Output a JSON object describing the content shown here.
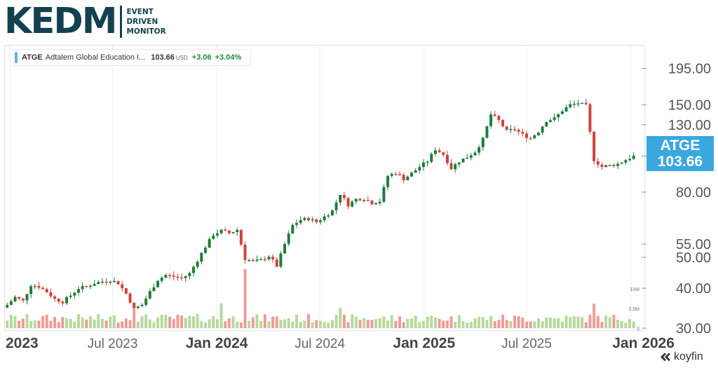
{
  "brand": {
    "logo_word": "KEDM",
    "tagline": [
      "EVENT",
      "DRIVEN",
      "MONITOR"
    ]
  },
  "legend": {
    "symbol": "ATGE",
    "name": "Adtalem Global Education I...",
    "price": "103.66",
    "currency": "USD",
    "change": "+3.06",
    "change_pct": "+3.04%"
  },
  "price_badge": {
    "symbol": "ATGE",
    "price": "103.66"
  },
  "footer": {
    "brand": "koyfin",
    "icon": "koyfin-logo-icon"
  },
  "colors": {
    "up": "#1e7c3a",
    "down": "#d0413b",
    "volume_up": "#b5d99b",
    "volume_down": "#ef9b98",
    "badge": "#3aa7de",
    "accent": "#5ab6df"
  },
  "chart_data": {
    "type": "candlestick",
    "y_scale": "log",
    "y_ticks": [
      "195.00",
      "150.00",
      "130.00",
      "80.00",
      "55.00",
      "50.00",
      "40.00",
      "30.00"
    ],
    "y_tick_values": [
      195,
      150,
      130,
      80,
      55,
      50,
      40,
      30
    ],
    "ylim": [
      30,
      230
    ],
    "x_labels": [
      "2023",
      "Jul 2023",
      "Jan 2024",
      "Jul 2024",
      "Jan 2025",
      "Jul 2025",
      "Jan 2026"
    ],
    "x_label_dates": [
      "2023-01-01",
      "2023-07-01",
      "2024-01-01",
      "2024-07-01",
      "2025-01-01",
      "2025-07-01",
      "2026-01-01"
    ],
    "x_range": [
      "2022-12-23",
      "2026-01-20"
    ],
    "volume_ticks": [
      "10M",
      "5.0M",
      "0"
    ],
    "volume_tick_values": [
      10000000,
      5000000,
      0
    ],
    "volume_max": 16000000,
    "last_price": 103.66,
    "grid": true,
    "close_series": [
      [
        "2022-12-27",
        35.5
      ],
      [
        "2023-01-10",
        37.5
      ],
      [
        "2023-01-24",
        36.5
      ],
      [
        "2023-02-07",
        41.0
      ],
      [
        "2023-02-21",
        40.5
      ],
      [
        "2023-03-07",
        39.0
      ],
      [
        "2023-03-21",
        37.0
      ],
      [
        "2023-04-04",
        36.3
      ],
      [
        "2023-04-18",
        38.0
      ],
      [
        "2023-05-02",
        40.0
      ],
      [
        "2023-05-16",
        40.5
      ],
      [
        "2023-05-30",
        41.5
      ],
      [
        "2023-06-13",
        42.0
      ],
      [
        "2023-06-27",
        42.5
      ],
      [
        "2023-07-11",
        41.5
      ],
      [
        "2023-07-25",
        38.5
      ],
      [
        "2023-08-08",
        34.5
      ],
      [
        "2023-08-22",
        35.5
      ],
      [
        "2023-09-05",
        39.0
      ],
      [
        "2023-09-19",
        42.5
      ],
      [
        "2023-10-03",
        44.0
      ],
      [
        "2023-10-17",
        43.5
      ],
      [
        "2023-10-31",
        43.0
      ],
      [
        "2023-11-14",
        44.5
      ],
      [
        "2023-11-28",
        49.0
      ],
      [
        "2023-12-12",
        54.0
      ],
      [
        "2023-12-26",
        59.0
      ],
      [
        "2024-01-09",
        60.5
      ],
      [
        "2024-01-23",
        59.5
      ],
      [
        "2024-02-06",
        61.0
      ],
      [
        "2024-02-20",
        49.5
      ],
      [
        "2024-03-05",
        48.5
      ],
      [
        "2024-03-19",
        49.0
      ],
      [
        "2024-04-02",
        50.5
      ],
      [
        "2024-04-16",
        47.0
      ],
      [
        "2024-04-30",
        55.0
      ],
      [
        "2024-05-14",
        63.0
      ],
      [
        "2024-05-28",
        65.5
      ],
      [
        "2024-06-11",
        66.0
      ],
      [
        "2024-06-25",
        64.5
      ],
      [
        "2024-07-09",
        67.0
      ],
      [
        "2024-07-23",
        70.0
      ],
      [
        "2024-08-06",
        79.0
      ],
      [
        "2024-08-20",
        73.0
      ],
      [
        "2024-09-03",
        76.0
      ],
      [
        "2024-09-17",
        76.5
      ],
      [
        "2024-10-01",
        74.0
      ],
      [
        "2024-10-15",
        75.0
      ],
      [
        "2024-10-29",
        90.0
      ],
      [
        "2024-11-12",
        92.0
      ],
      [
        "2024-11-26",
        88.0
      ],
      [
        "2024-12-10",
        91.5
      ],
      [
        "2024-12-24",
        96.0
      ],
      [
        "2025-01-07",
        100.0
      ],
      [
        "2025-01-21",
        109.0
      ],
      [
        "2025-02-04",
        105.0
      ],
      [
        "2025-02-18",
        95.0
      ],
      [
        "2025-03-04",
        100.0
      ],
      [
        "2025-03-18",
        103.0
      ],
      [
        "2025-04-01",
        107.0
      ],
      [
        "2025-04-15",
        117.0
      ],
      [
        "2025-04-29",
        140.0
      ],
      [
        "2025-05-13",
        134.0
      ],
      [
        "2025-05-27",
        124.0
      ],
      [
        "2025-06-10",
        126.0
      ],
      [
        "2025-06-24",
        121.0
      ],
      [
        "2025-07-08",
        118.0
      ],
      [
        "2025-07-22",
        124.0
      ],
      [
        "2025-08-05",
        134.0
      ],
      [
        "2025-08-19",
        136.0
      ],
      [
        "2025-09-02",
        144.0
      ],
      [
        "2025-09-16",
        150.0
      ],
      [
        "2025-09-30",
        152.0
      ],
      [
        "2025-10-14",
        149.0
      ],
      [
        "2025-10-28",
        101.0
      ],
      [
        "2025-11-11",
        96.0
      ],
      [
        "2025-11-25",
        97.0
      ],
      [
        "2025-12-09",
        98.0
      ],
      [
        "2025-12-23",
        101.0
      ],
      [
        "2026-01-06",
        103.66
      ]
    ],
    "volume_spikes": [
      [
        "2023-08-08",
        6000000
      ],
      [
        "2024-01-09",
        6300000
      ],
      [
        "2024-02-20",
        15000000
      ],
      [
        "2024-08-06",
        5200000
      ],
      [
        "2025-10-28",
        6200000
      ]
    ],
    "volume_baseline": 2500000
  }
}
